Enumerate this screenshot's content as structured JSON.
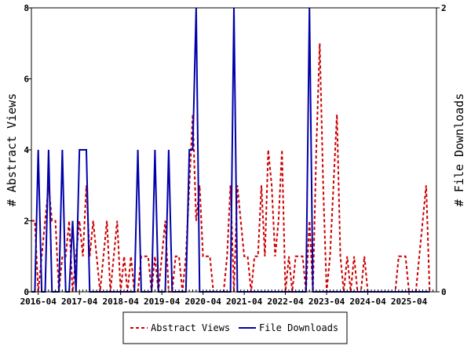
{
  "chart_data": {
    "type": "line",
    "ylabel": "# Abstract Views",
    "y2label": "# File Downloads",
    "ylim": [
      0,
      8
    ],
    "y2lim": [
      0,
      2
    ],
    "yticks": [
      0,
      2,
      4,
      6,
      8
    ],
    "y2ticks": [
      0,
      2
    ],
    "xlim": [
      "2016-02",
      "2025-12"
    ],
    "xticks": [
      "2016-04",
      "2017-04",
      "2018-04",
      "2019-04",
      "2020-04",
      "2021-04",
      "2022-04",
      "2023-04",
      "2024-04",
      "2025-04"
    ],
    "grid": false,
    "legend": "bottom-center",
    "series": [
      {
        "name": "Abstract Views",
        "axis": "left",
        "color": "#cc0000",
        "style": "dashed",
        "points": [
          [
            "2016-02",
            2
          ],
          [
            "2016-03",
            2
          ],
          [
            "2016-04",
            0
          ],
          [
            "2016-05",
            1
          ],
          [
            "2016-06",
            2
          ],
          [
            "2016-07",
            3
          ],
          [
            "2016-08",
            2
          ],
          [
            "2016-09",
            2
          ],
          [
            "2016-10",
            0
          ],
          [
            "2016-11",
            1
          ],
          [
            "2016-12",
            1
          ],
          [
            "2017-01",
            2
          ],
          [
            "2017-02",
            0
          ],
          [
            "2017-03",
            1
          ],
          [
            "2017-04",
            2
          ],
          [
            "2017-05",
            1
          ],
          [
            "2017-06",
            3
          ],
          [
            "2017-07",
            1
          ],
          [
            "2017-08",
            2
          ],
          [
            "2017-09",
            1
          ],
          [
            "2017-10",
            0
          ],
          [
            "2017-11",
            1
          ],
          [
            "2017-12",
            2
          ],
          [
            "2018-01",
            0
          ],
          [
            "2018-02",
            1
          ],
          [
            "2018-03",
            2
          ],
          [
            "2018-04",
            0
          ],
          [
            "2018-05",
            1
          ],
          [
            "2018-06",
            0
          ],
          [
            "2018-07",
            1
          ],
          [
            "2018-08",
            0
          ],
          [
            "2018-09",
            0
          ],
          [
            "2018-10",
            1
          ],
          [
            "2018-11",
            1
          ],
          [
            "2018-12",
            1
          ],
          [
            "2019-01",
            0
          ],
          [
            "2019-02",
            1
          ],
          [
            "2019-03",
            0
          ],
          [
            "2019-04",
            1
          ],
          [
            "2019-05",
            2
          ],
          [
            "2019-06",
            0
          ],
          [
            "2019-07",
            0
          ],
          [
            "2019-08",
            1
          ],
          [
            "2019-09",
            1
          ],
          [
            "2019-10",
            0
          ],
          [
            "2019-11",
            1
          ],
          [
            "2019-12",
            3
          ],
          [
            "2020-01",
            5
          ],
          [
            "2020-02",
            2
          ],
          [
            "2020-03",
            3
          ],
          [
            "2020-04",
            1
          ],
          [
            "2020-05",
            1
          ],
          [
            "2020-06",
            1
          ],
          [
            "2020-07",
            0
          ],
          [
            "2020-08",
            0
          ],
          [
            "2020-09",
            0
          ],
          [
            "2020-10",
            0
          ],
          [
            "2020-11",
            1
          ],
          [
            "2020-12",
            3
          ],
          [
            "2021-01",
            0
          ],
          [
            "2021-02",
            3
          ],
          [
            "2021-03",
            2
          ],
          [
            "2021-04",
            1
          ],
          [
            "2021-05",
            1
          ],
          [
            "2021-06",
            0
          ],
          [
            "2021-07",
            1
          ],
          [
            "2021-08",
            1
          ],
          [
            "2021-09",
            3
          ],
          [
            "2021-10",
            1
          ],
          [
            "2021-11",
            4
          ],
          [
            "2021-12",
            3
          ],
          [
            "2022-01",
            1
          ],
          [
            "2022-02",
            2
          ],
          [
            "2022-03",
            4
          ],
          [
            "2022-04",
            0
          ],
          [
            "2022-05",
            1
          ],
          [
            "2022-06",
            0
          ],
          [
            "2022-07",
            1
          ],
          [
            "2022-08",
            1
          ],
          [
            "2022-09",
            1
          ],
          [
            "2022-10",
            0
          ],
          [
            "2022-11",
            2
          ],
          [
            "2022-12",
            0
          ],
          [
            "2023-01",
            4
          ],
          [
            "2023-02",
            7
          ],
          [
            "2023-03",
            3
          ],
          [
            "2023-04",
            0
          ],
          [
            "2023-05",
            1
          ],
          [
            "2023-06",
            3
          ],
          [
            "2023-07",
            5
          ],
          [
            "2023-08",
            1
          ],
          [
            "2023-09",
            0
          ],
          [
            "2023-10",
            1
          ],
          [
            "2023-11",
            0
          ],
          [
            "2023-12",
            1
          ],
          [
            "2024-01",
            0
          ],
          [
            "2024-02",
            0
          ],
          [
            "2024-03",
            1
          ],
          [
            "2024-04",
            0
          ],
          [
            "2024-05",
            0
          ],
          [
            "2024-06",
            0
          ],
          [
            "2024-07",
            0
          ],
          [
            "2024-08",
            0
          ],
          [
            "2024-09",
            0
          ],
          [
            "2024-10",
            0
          ],
          [
            "2024-11",
            0
          ],
          [
            "2024-12",
            0
          ],
          [
            "2025-01",
            1
          ],
          [
            "2025-02",
            1
          ],
          [
            "2025-03",
            1
          ],
          [
            "2025-04",
            0
          ],
          [
            "2025-05",
            0
          ],
          [
            "2025-06",
            0
          ],
          [
            "2025-07",
            1
          ],
          [
            "2025-08",
            2
          ],
          [
            "2025-09",
            3
          ],
          [
            "2025-10",
            0
          ]
        ]
      },
      {
        "name": "File Downloads",
        "axis": "right",
        "color": "#0000aa",
        "style": "solid",
        "points": [
          [
            "2016-02",
            0
          ],
          [
            "2016-03",
            0
          ],
          [
            "2016-04",
            1
          ],
          [
            "2016-05",
            0
          ],
          [
            "2016-06",
            0
          ],
          [
            "2016-07",
            1
          ],
          [
            "2016-08",
            0
          ],
          [
            "2016-09",
            0
          ],
          [
            "2016-10",
            0
          ],
          [
            "2016-11",
            1
          ],
          [
            "2016-12",
            0
          ],
          [
            "2017-01",
            0
          ],
          [
            "2017-02",
            0.5
          ],
          [
            "2017-03",
            0
          ],
          [
            "2017-04",
            1
          ],
          [
            "2017-05",
            1
          ],
          [
            "2017-06",
            1
          ],
          [
            "2017-07",
            0
          ],
          [
            "2017-08",
            0
          ],
          [
            "2017-09",
            0
          ],
          [
            "2017-10",
            0
          ],
          [
            "2017-11",
            0
          ],
          [
            "2017-12",
            0
          ],
          [
            "2018-01",
            0
          ],
          [
            "2018-02",
            0
          ],
          [
            "2018-03",
            0
          ],
          [
            "2018-04",
            0
          ],
          [
            "2018-05",
            0
          ],
          [
            "2018-06",
            0
          ],
          [
            "2018-07",
            0
          ],
          [
            "2018-08",
            0
          ],
          [
            "2018-09",
            1
          ],
          [
            "2018-10",
            0
          ],
          [
            "2018-11",
            0
          ],
          [
            "2018-12",
            0
          ],
          [
            "2019-01",
            0
          ],
          [
            "2019-02",
            1
          ],
          [
            "2019-03",
            0
          ],
          [
            "2019-04",
            0
          ],
          [
            "2019-05",
            0
          ],
          [
            "2019-06",
            1
          ],
          [
            "2019-07",
            0
          ],
          [
            "2019-08",
            0
          ],
          [
            "2019-09",
            0
          ],
          [
            "2019-10",
            0
          ],
          [
            "2019-11",
            0
          ],
          [
            "2019-12",
            1
          ],
          [
            "2020-01",
            1
          ],
          [
            "2020-02",
            2
          ],
          [
            "2020-03",
            0
          ],
          [
            "2020-04",
            0
          ],
          [
            "2020-05",
            0
          ],
          [
            "2020-06",
            0
          ],
          [
            "2020-07",
            0
          ],
          [
            "2020-08",
            0
          ],
          [
            "2020-09",
            0
          ],
          [
            "2020-10",
            0
          ],
          [
            "2020-11",
            0
          ],
          [
            "2020-12",
            0
          ],
          [
            "2021-01",
            2
          ],
          [
            "2021-02",
            0
          ],
          [
            "2021-03",
            0
          ],
          [
            "2021-04",
            0
          ],
          [
            "2021-05",
            0
          ],
          [
            "2021-06",
            0
          ],
          [
            "2021-07",
            0
          ],
          [
            "2021-08",
            0
          ],
          [
            "2021-09",
            0
          ],
          [
            "2021-10",
            0
          ],
          [
            "2021-11",
            0
          ],
          [
            "2021-12",
            0
          ],
          [
            "2022-01",
            0
          ],
          [
            "2022-02",
            0
          ],
          [
            "2022-03",
            0
          ],
          [
            "2022-04",
            0
          ],
          [
            "2022-05",
            0
          ],
          [
            "2022-06",
            0
          ],
          [
            "2022-07",
            0
          ],
          [
            "2022-08",
            0
          ],
          [
            "2022-09",
            0
          ],
          [
            "2022-10",
            0
          ],
          [
            "2022-11",
            2
          ],
          [
            "2022-12",
            0
          ],
          [
            "2023-01",
            0
          ],
          [
            "2023-02",
            0
          ],
          [
            "2023-03",
            0
          ],
          [
            "2023-04",
            0
          ],
          [
            "2023-05",
            0
          ],
          [
            "2023-06",
            0
          ],
          [
            "2023-07",
            0
          ],
          [
            "2023-08",
            0
          ],
          [
            "2023-09",
            0
          ],
          [
            "2023-10",
            0
          ],
          [
            "2023-11",
            0
          ],
          [
            "2023-12",
            0
          ],
          [
            "2024-01",
            0
          ],
          [
            "2024-02",
            0
          ],
          [
            "2024-03",
            0
          ],
          [
            "2024-04",
            0
          ],
          [
            "2024-05",
            0
          ],
          [
            "2024-06",
            0
          ],
          [
            "2024-07",
            0
          ],
          [
            "2024-08",
            0
          ],
          [
            "2024-09",
            0
          ],
          [
            "2024-10",
            0
          ],
          [
            "2024-11",
            0
          ],
          [
            "2024-12",
            0
          ],
          [
            "2025-01",
            0
          ],
          [
            "2025-02",
            0
          ],
          [
            "2025-03",
            0
          ],
          [
            "2025-04",
            0
          ],
          [
            "2025-05",
            0
          ],
          [
            "2025-06",
            0
          ],
          [
            "2025-07",
            0
          ],
          [
            "2025-08",
            0
          ],
          [
            "2025-09",
            0
          ],
          [
            "2025-10",
            0
          ]
        ]
      }
    ]
  }
}
